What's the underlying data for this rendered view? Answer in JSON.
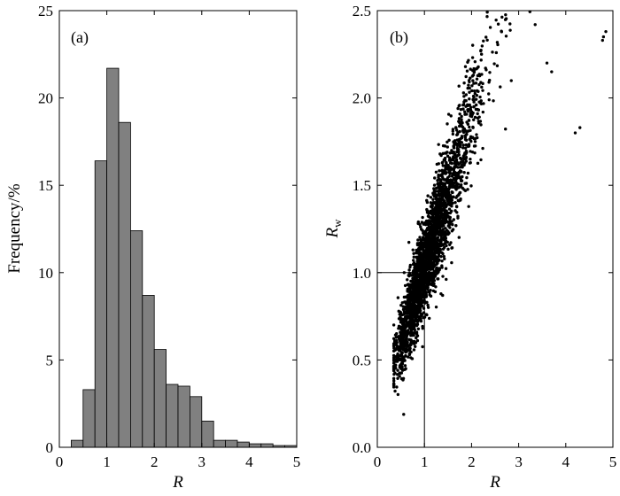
{
  "chart_data": [
    {
      "type": "bar",
      "panel_label": "(a)",
      "xlabel": "R",
      "ylabel": "Frequency/%",
      "xlim": [
        0,
        5
      ],
      "ylim": [
        0,
        25
      ],
      "xticks": [
        0,
        1,
        2,
        3,
        4,
        5
      ],
      "yticks": [
        0,
        5,
        10,
        15,
        20,
        25
      ],
      "bin_width": 0.25,
      "bin_starts": [
        0.25,
        0.5,
        0.75,
        1.0,
        1.25,
        1.5,
        1.75,
        2.0,
        2.25,
        2.5,
        2.75,
        3.0,
        3.25,
        3.5,
        3.75,
        4.0,
        4.25,
        4.5,
        4.75
      ],
      "values": [
        0.4,
        3.3,
        16.4,
        21.7,
        18.6,
        12.4,
        8.7,
        5.6,
        3.6,
        3.5,
        2.9,
        1.5,
        0.4,
        0.4,
        0.3,
        0.2,
        0.2,
        0.1,
        0.1
      ],
      "bar_color": "#808080",
      "grid": false
    },
    {
      "type": "scatter",
      "panel_label": "(b)",
      "xlabel": "R",
      "ylabel": "R",
      "ylabel_subscript": "w",
      "xlim": [
        0,
        5
      ],
      "ylim": [
        0,
        2.5
      ],
      "xticks": [
        0,
        1,
        2,
        3,
        4,
        5
      ],
      "yticks": [
        0.0,
        0.5,
        1.0,
        1.5,
        2.0,
        2.5
      ],
      "reference_lines": {
        "x": 1.0,
        "y": 1.0
      },
      "marker_color": "#000000",
      "grid": false,
      "outliers": [
        [
          4.2,
          1.8
        ],
        [
          4.3,
          1.83
        ],
        [
          4.8,
          2.35
        ],
        [
          4.85,
          2.38
        ],
        [
          4.78,
          2.33
        ],
        [
          3.6,
          2.2
        ],
        [
          3.7,
          2.15
        ],
        [
          3.35,
          2.42
        ]
      ],
      "point_cloud": {
        "count": 2600,
        "x_mode": 1.1,
        "y_intercept": 0.18,
        "y_slope": 0.85,
        "noise": 0.14
      }
    }
  ]
}
